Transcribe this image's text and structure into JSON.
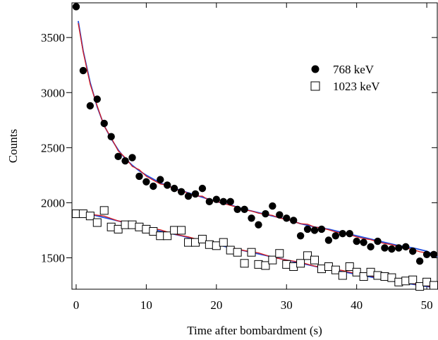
{
  "chart_data": {
    "type": "scatter",
    "title": "",
    "xlabel": "Time after bombardment (s)",
    "ylabel": "Counts",
    "xlim": [
      -0.6,
      51.5
    ],
    "ylim": [
      1215,
      3815
    ],
    "xticks": [
      0,
      10,
      20,
      30,
      40,
      50
    ],
    "yticks": [
      1500,
      2000,
      2500,
      3000,
      3500
    ],
    "grid": false,
    "legend_position": "upper-right",
    "series": [
      {
        "name": "768 keV",
        "marker": "filled-circle",
        "color": "#000000",
        "x": [
          0,
          1,
          2,
          3,
          4,
          5,
          6,
          7,
          8,
          9,
          10,
          11,
          12,
          13,
          14,
          15,
          16,
          17,
          18,
          19,
          20,
          21,
          22,
          23,
          24,
          25,
          26,
          27,
          28,
          29,
          30,
          31,
          32,
          33,
          34,
          35,
          36,
          37,
          38,
          39,
          40,
          41,
          42,
          43,
          44,
          45,
          46,
          47,
          48,
          49,
          50,
          51
        ],
        "values": [
          3780,
          3200,
          2880,
          2940,
          2720,
          2600,
          2420,
          2380,
          2410,
          2240,
          2190,
          2150,
          2210,
          2160,
          2130,
          2100,
          2060,
          2080,
          2130,
          2010,
          2030,
          2010,
          2010,
          1940,
          1940,
          1860,
          1800,
          1900,
          1970,
          1890,
          1860,
          1840,
          1700,
          1760,
          1750,
          1760,
          1660,
          1700,
          1720,
          1720,
          1650,
          1640,
          1600,
          1650,
          1590,
          1580,
          1590,
          1600,
          1560,
          1470,
          1530,
          1530
        ]
      },
      {
        "name": "1023 keV",
        "marker": "open-square",
        "color": "#000000",
        "x": [
          0,
          1,
          2,
          3,
          4,
          5,
          6,
          7,
          8,
          9,
          10,
          11,
          12,
          13,
          14,
          15,
          16,
          17,
          18,
          19,
          20,
          21,
          22,
          23,
          24,
          25,
          26,
          27,
          28,
          29,
          30,
          31,
          32,
          33,
          34,
          35,
          36,
          37,
          38,
          39,
          40,
          41,
          42,
          43,
          44,
          45,
          46,
          47,
          48,
          49,
          50,
          51
        ],
        "values": [
          1900,
          1900,
          1880,
          1820,
          1930,
          1780,
          1760,
          1800,
          1800,
          1780,
          1760,
          1740,
          1700,
          1700,
          1750,
          1750,
          1640,
          1640,
          1670,
          1620,
          1610,
          1640,
          1570,
          1550,
          1450,
          1550,
          1440,
          1430,
          1480,
          1540,
          1440,
          1420,
          1450,
          1520,
          1480,
          1400,
          1420,
          1390,
          1340,
          1420,
          1370,
          1330,
          1370,
          1340,
          1330,
          1320,
          1280,
          1290,
          1300,
          1240,
          1280,
          1250
        ]
      }
    ],
    "fits": [
      {
        "color": "#1f4fe0",
        "target": "768 keV",
        "x": [
          0.3,
          1,
          2,
          3,
          4,
          5,
          6,
          7,
          8,
          9,
          10,
          12,
          14,
          16,
          18,
          20,
          22,
          24,
          26,
          28,
          30,
          32,
          34,
          36,
          38,
          40,
          42,
          44,
          46,
          48,
          50,
          51.5
        ],
        "values": [
          3650,
          3380,
          3090,
          2870,
          2700,
          2580,
          2480,
          2400,
          2340,
          2290,
          2250,
          2180,
          2130,
          2090,
          2050,
          2010,
          1980,
          1940,
          1910,
          1880,
          1850,
          1810,
          1780,
          1760,
          1730,
          1700,
          1670,
          1640,
          1610,
          1590,
          1560,
          1510
        ]
      },
      {
        "color": "#d81b1b",
        "target": "768 keV",
        "x": [
          0.3,
          1,
          2,
          3,
          4,
          5,
          6,
          7,
          8,
          9,
          10,
          11,
          12,
          13,
          14,
          15,
          16,
          17,
          18,
          19,
          20,
          21,
          22,
          23,
          24,
          25,
          26,
          27,
          28,
          29,
          30,
          31,
          32,
          33,
          34,
          35,
          36,
          37,
          38,
          39,
          40,
          41,
          42,
          43,
          44,
          45,
          46,
          47,
          48,
          49,
          50,
          51.5
        ],
        "values": [
          3630,
          3370,
          3075,
          2880,
          2695,
          2590,
          2470,
          2410,
          2330,
          2300,
          2240,
          2205,
          2170,
          2160,
          2120,
          2110,
          2085,
          2060,
          2060,
          2020,
          2010,
          1995,
          1975,
          1960,
          1935,
          1925,
          1905,
          1895,
          1885,
          1860,
          1850,
          1830,
          1810,
          1805,
          1780,
          1770,
          1755,
          1735,
          1720,
          1710,
          1690,
          1675,
          1665,
          1645,
          1630,
          1620,
          1600,
          1590,
          1575,
          1555,
          1545,
          1520
        ]
      },
      {
        "color": "#1f4fe0",
        "target": "1023 keV",
        "x": [
          0,
          5,
          10,
          15,
          20,
          25,
          30,
          35,
          40,
          45,
          50,
          51.5
        ],
        "values": [
          1925,
          1850,
          1770,
          1700,
          1620,
          1550,
          1480,
          1410,
          1350,
          1290,
          1240,
          1225
        ]
      },
      {
        "color": "#d81b1b",
        "target": "1023 keV",
        "x": [
          0,
          2,
          4,
          6,
          8,
          10,
          12,
          14,
          16,
          18,
          20,
          22,
          24,
          26,
          28,
          30,
          32,
          34,
          36,
          38,
          40,
          42,
          44,
          46,
          48,
          50,
          51.5
        ],
        "values": [
          1930,
          1895,
          1880,
          1835,
          1815,
          1775,
          1755,
          1715,
          1690,
          1655,
          1630,
          1595,
          1565,
          1545,
          1505,
          1480,
          1460,
          1425,
          1405,
          1385,
          1355,
          1335,
          1310,
          1295,
          1265,
          1245,
          1230
        ]
      }
    ]
  }
}
